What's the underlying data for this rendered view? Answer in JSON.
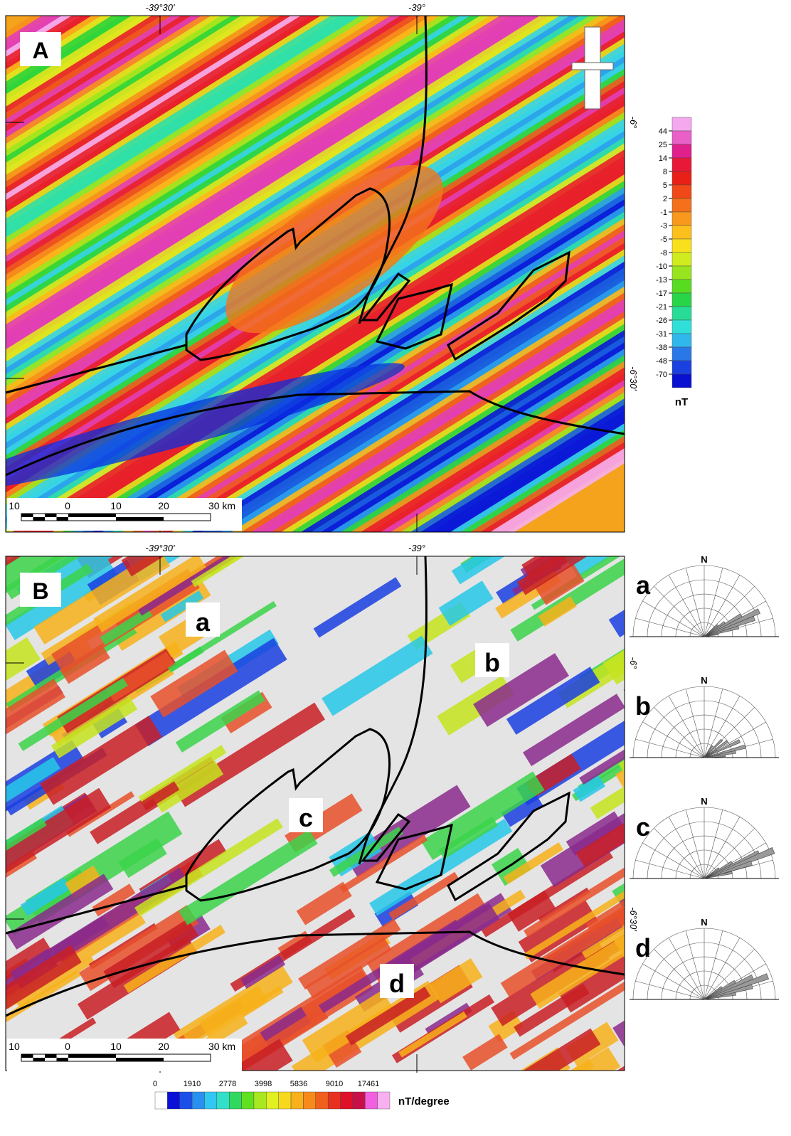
{
  "panel_a": {
    "label": "A",
    "lon_labels": [
      "-39°30'",
      "-39°"
    ],
    "lat_labels": [
      "-6°",
      "-6°30'"
    ],
    "legend": {
      "labels": [
        "44",
        "25",
        "14",
        "8",
        "5",
        "2",
        "-1",
        "-3",
        "-5",
        "-8",
        "-10",
        "-13",
        "-17",
        "-21",
        "-26",
        "-31",
        "-38",
        "-48",
        "-70"
      ],
      "unit": "nT"
    },
    "scale": [
      "10",
      "0",
      "10",
      "20",
      "30 km"
    ]
  },
  "panel_b": {
    "label": "B",
    "lon_labels": [
      "-39°30'",
      "-39°"
    ],
    "lat_labels": [
      "-6°",
      "-6°30'"
    ],
    "regions": [
      "a",
      "b",
      "c",
      "d"
    ],
    "scale": [
      "10",
      "0",
      "10",
      "20",
      "30 km"
    ]
  },
  "roses": [
    {
      "label": "a",
      "north": "N"
    },
    {
      "label": "b",
      "north": "N"
    },
    {
      "label": "c",
      "north": "N"
    },
    {
      "label": "d",
      "north": "N"
    }
  ],
  "legend_b": {
    "labels": [
      "0",
      "1910",
      "2778",
      "3998",
      "5836",
      "9010",
      "17461"
    ],
    "unit": "nT/degree"
  }
}
